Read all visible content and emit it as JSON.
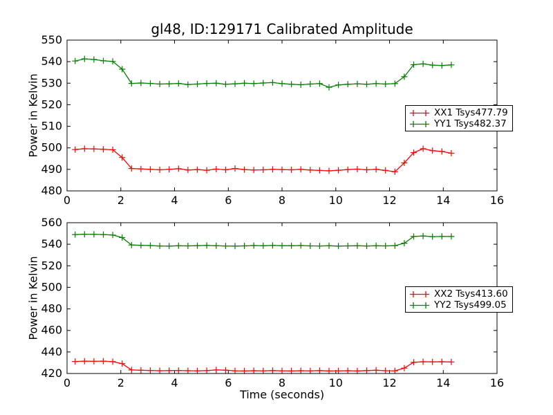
{
  "figure": {
    "title": "gl48, ID:129171 Calibrated Amplitude",
    "background": "#ffffff",
    "text_color": "#000000"
  },
  "chart_data": [
    {
      "type": "line",
      "ylabel": "Power in Kelvin",
      "xlabel": "",
      "xlim": [
        0,
        16
      ],
      "ylim": [
        480,
        550
      ],
      "xticks": [
        0,
        2,
        4,
        6,
        8,
        10,
        12,
        14,
        16
      ],
      "yticks": [
        480,
        490,
        500,
        510,
        520,
        530,
        540,
        550
      ],
      "grid": false,
      "legend": {
        "position": "center-right",
        "entries": [
          {
            "label": "XX1 Tsys477.79",
            "color": "#ff0000",
            "marker": "plus"
          },
          {
            "label": "YY1 Tsys482.37",
            "color": "#007f00",
            "marker": "plus"
          }
        ]
      },
      "x": [
        0.3,
        0.65,
        1.0,
        1.35,
        1.7,
        2.05,
        2.4,
        2.75,
        3.1,
        3.45,
        3.8,
        4.15,
        4.5,
        4.85,
        5.2,
        5.55,
        5.9,
        6.25,
        6.6,
        6.95,
        7.3,
        7.65,
        8.0,
        8.35,
        8.7,
        9.05,
        9.4,
        9.75,
        10.1,
        10.45,
        10.8,
        11.15,
        11.5,
        11.85,
        12.2,
        12.55,
        12.9,
        13.25,
        13.6,
        13.95,
        14.3
      ],
      "series": [
        {
          "name": "XX1",
          "color": "#ff0000",
          "marker": "plus",
          "values": [
            499.2,
            499.6,
            499.5,
            499.3,
            499.1,
            495.5,
            490.4,
            490.2,
            490.0,
            489.8,
            490.0,
            490.3,
            489.7,
            489.9,
            489.6,
            490.1,
            489.8,
            490.4,
            489.9,
            489.7,
            489.8,
            490.0,
            489.9,
            489.8,
            490.0,
            489.7,
            489.5,
            489.3,
            489.6,
            489.9,
            490.1,
            489.8,
            490.0,
            489.5,
            488.9,
            493.0,
            497.8,
            499.6,
            498.7,
            498.3,
            497.5
          ]
        },
        {
          "name": "YY1",
          "color": "#007f00",
          "marker": "plus",
          "values": [
            540.3,
            541.3,
            541.0,
            540.4,
            540.1,
            536.5,
            529.9,
            530.1,
            529.9,
            529.6,
            529.7,
            529.9,
            529.4,
            529.6,
            529.9,
            530.0,
            529.5,
            529.7,
            530.0,
            529.8,
            530.1,
            530.3,
            529.8,
            529.5,
            529.3,
            529.6,
            529.8,
            528.1,
            529.2,
            529.5,
            529.7,
            529.5,
            529.8,
            529.6,
            529.8,
            533.0,
            538.6,
            539.0,
            538.4,
            538.2,
            538.5
          ]
        }
      ]
    },
    {
      "type": "line",
      "ylabel": "Power in Kelvin",
      "xlabel": "Time (seconds)",
      "xlim": [
        0,
        16
      ],
      "ylim": [
        420,
        560
      ],
      "xticks": [
        0,
        2,
        4,
        6,
        8,
        10,
        12,
        14,
        16
      ],
      "yticks": [
        420,
        440,
        460,
        480,
        500,
        520,
        540,
        560
      ],
      "grid": false,
      "legend": {
        "position": "center-right",
        "entries": [
          {
            "label": "XX2 Tsys413.60",
            "color": "#ff0000",
            "marker": "plus"
          },
          {
            "label": "YY2 Tsys499.05",
            "color": "#007f00",
            "marker": "plus"
          }
        ]
      },
      "x": [
        0.3,
        0.65,
        1.0,
        1.35,
        1.7,
        2.05,
        2.4,
        2.75,
        3.1,
        3.45,
        3.8,
        4.15,
        4.5,
        4.85,
        5.2,
        5.55,
        5.9,
        6.25,
        6.6,
        6.95,
        7.3,
        7.65,
        8.0,
        8.35,
        8.7,
        9.05,
        9.4,
        9.75,
        10.1,
        10.45,
        10.8,
        11.15,
        11.5,
        11.85,
        12.2,
        12.55,
        12.9,
        13.25,
        13.6,
        13.95,
        14.3
      ],
      "series": [
        {
          "name": "XX2",
          "color": "#ff0000",
          "marker": "plus",
          "values": [
            431.2,
            431.5,
            431.3,
            431.5,
            431.0,
            429.2,
            423.3,
            423.0,
            422.8,
            422.6,
            422.7,
            422.8,
            422.6,
            422.5,
            422.7,
            423.3,
            423.1,
            422.5,
            422.4,
            422.6,
            422.5,
            422.7,
            422.5,
            422.4,
            422.6,
            422.5,
            422.7,
            422.4,
            422.5,
            422.6,
            422.4,
            422.7,
            423.0,
            422.6,
            422.5,
            425.0,
            430.4,
            430.9,
            430.8,
            430.9,
            430.7
          ]
        },
        {
          "name": "YY2",
          "color": "#007f00",
          "marker": "plus",
          "values": [
            549.0,
            549.3,
            549.2,
            549.0,
            548.6,
            546.2,
            539.3,
            539.0,
            538.8,
            538.4,
            538.3,
            538.6,
            538.5,
            538.7,
            538.9,
            538.6,
            538.4,
            538.3,
            538.5,
            538.8,
            538.6,
            538.9,
            538.7,
            538.6,
            538.8,
            538.5,
            538.4,
            538.6,
            538.3,
            538.5,
            538.6,
            538.4,
            538.6,
            538.5,
            538.7,
            541.0,
            547.2,
            547.7,
            547.1,
            547.3,
            547.2
          ]
        }
      ]
    }
  ]
}
